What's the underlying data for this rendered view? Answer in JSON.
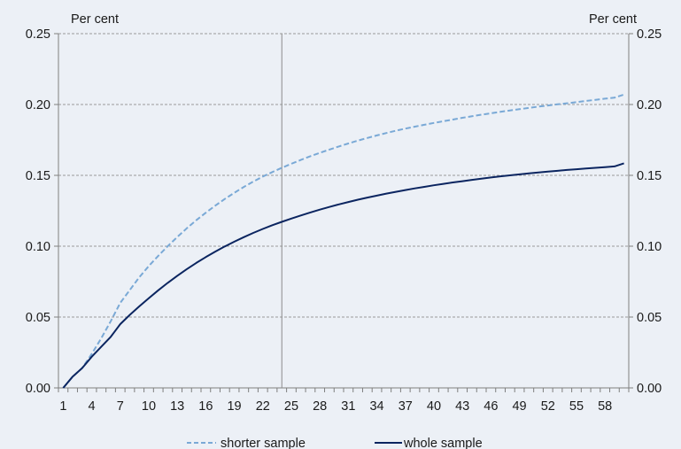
{
  "chart_data": {
    "type": "line",
    "unit_left": "Per cent",
    "unit_right": "Per cent",
    "x": [
      1,
      2,
      3,
      4,
      5,
      6,
      7,
      8,
      9,
      10,
      11,
      12,
      13,
      14,
      15,
      16,
      17,
      18,
      19,
      20,
      21,
      22,
      23,
      24,
      25,
      26,
      27,
      28,
      29,
      30,
      31,
      32,
      33,
      34,
      35,
      36,
      37,
      38,
      39,
      40,
      41,
      42,
      43,
      44,
      45,
      46,
      47,
      48,
      49,
      50,
      51,
      52,
      53,
      54,
      55,
      56,
      57,
      58,
      59,
      60
    ],
    "x_ticks": [
      "1",
      "4",
      "7",
      "10",
      "13",
      "16",
      "19",
      "22",
      "25",
      "28",
      "31",
      "34",
      "37",
      "40",
      "43",
      "46",
      "49",
      "52",
      "55",
      "58"
    ],
    "ylim": [
      0,
      0.25
    ],
    "y_ticks": [
      "0.00",
      "0.05",
      "0.10",
      "0.15",
      "0.20",
      "0.25"
    ],
    "vertical_marker_x": 24,
    "grid": "horizontal-dotted",
    "legend_position": "bottom",
    "series": [
      {
        "name": "shorter sample",
        "color": "#7aa9d6",
        "style": "dashed",
        "values": [
          0,
          0.008,
          0.014,
          0.024,
          0.035,
          0.047,
          0.06,
          0.069,
          0.078,
          0.086,
          0.0932,
          0.1,
          0.1065,
          0.1126,
          0.1183,
          0.1236,
          0.1286,
          0.1333,
          0.1377,
          0.1418,
          0.1456,
          0.1491,
          0.1523,
          0.1553,
          0.1582,
          0.1609,
          0.1635,
          0.1659,
          0.1682,
          0.1704,
          0.1725,
          0.1745,
          0.1764,
          0.1782,
          0.1799,
          0.1815,
          0.183,
          0.1844,
          0.1857,
          0.187,
          0.1882,
          0.1894,
          0.1906,
          0.1917,
          0.1928,
          0.1938,
          0.1948,
          0.1958,
          0.1967,
          0.1976,
          0.1985,
          0.1993,
          0.2001,
          0.2009,
          0.2017,
          0.2025,
          0.2033,
          0.2041,
          0.2048,
          0.207
        ]
      },
      {
        "name": "whole sample",
        "color": "#0b2560",
        "style": "solid",
        "values": [
          0,
          0.008,
          0.014,
          0.022,
          0.029,
          0.036,
          0.045,
          0.0515,
          0.0575,
          0.0633,
          0.0689,
          0.0741,
          0.0791,
          0.0838,
          0.0882,
          0.0923,
          0.0962,
          0.0998,
          0.1032,
          0.1064,
          0.1094,
          0.1122,
          0.1148,
          0.1172,
          0.1195,
          0.1217,
          0.1238,
          0.1258,
          0.1277,
          0.1295,
          0.1312,
          0.1328,
          0.1343,
          0.1357,
          0.1371,
          0.1384,
          0.1396,
          0.1408,
          0.1419,
          0.143,
          0.144,
          0.145,
          0.1459,
          0.1468,
          0.1477,
          0.1485,
          0.1493,
          0.15,
          0.1507,
          0.1514,
          0.152,
          0.1526,
          0.1532,
          0.1538,
          0.1543,
          0.1548,
          0.1553,
          0.1558,
          0.1563,
          0.1585
        ]
      }
    ]
  }
}
